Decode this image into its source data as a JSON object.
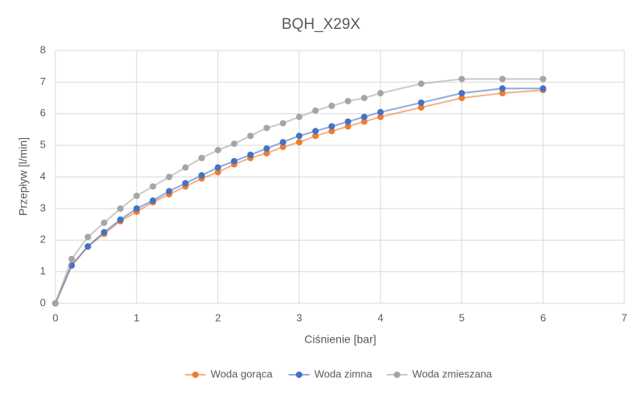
{
  "chart_data": {
    "type": "line",
    "title": "BQH_X29X",
    "x_label": "Ciśnienie [bar]",
    "y_label": "Przepływ [l/min]",
    "x": [
      0,
      0.2,
      0.4,
      0.6,
      0.8,
      1.0,
      1.2,
      1.4,
      1.6,
      1.8,
      2.0,
      2.2,
      2.4,
      2.6,
      2.8,
      3.0,
      3.2,
      3.4,
      3.6,
      3.8,
      4.0,
      4.5,
      5.0,
      5.5,
      6.0
    ],
    "series": [
      {
        "name": "Woda gorąca",
        "color": "#ed7d31",
        "values": [
          0,
          1.2,
          1.8,
          2.2,
          2.6,
          2.9,
          3.2,
          3.45,
          3.7,
          3.95,
          4.15,
          4.4,
          4.6,
          4.75,
          4.95,
          5.1,
          5.3,
          5.45,
          5.6,
          5.75,
          5.9,
          6.2,
          6.5,
          6.65,
          6.75
        ]
      },
      {
        "name": "Woda zimna",
        "color": "#4472c4",
        "values": [
          0,
          1.2,
          1.8,
          2.25,
          2.65,
          3.0,
          3.25,
          3.55,
          3.8,
          4.05,
          4.3,
          4.5,
          4.7,
          4.9,
          5.1,
          5.3,
          5.45,
          5.6,
          5.75,
          5.9,
          6.05,
          6.35,
          6.65,
          6.8,
          6.8
        ]
      },
      {
        "name": "Woda zmieszana",
        "color": "#a5a5a5",
        "values": [
          0,
          1.4,
          2.1,
          2.55,
          3.0,
          3.4,
          3.7,
          4.0,
          4.3,
          4.6,
          4.85,
          5.05,
          5.3,
          5.55,
          5.7,
          5.9,
          6.1,
          6.25,
          6.4,
          6.5,
          6.65,
          6.95,
          7.1,
          7.1,
          7.1
        ]
      }
    ],
    "xlim": [
      0,
      7
    ],
    "xticks": [
      0,
      1,
      2,
      3,
      4,
      5,
      6,
      7
    ],
    "ylim": [
      0,
      8
    ],
    "yticks": [
      0,
      1,
      2,
      3,
      4,
      5,
      6,
      7,
      8
    ],
    "grid": true,
    "legend": "bottom"
  }
}
